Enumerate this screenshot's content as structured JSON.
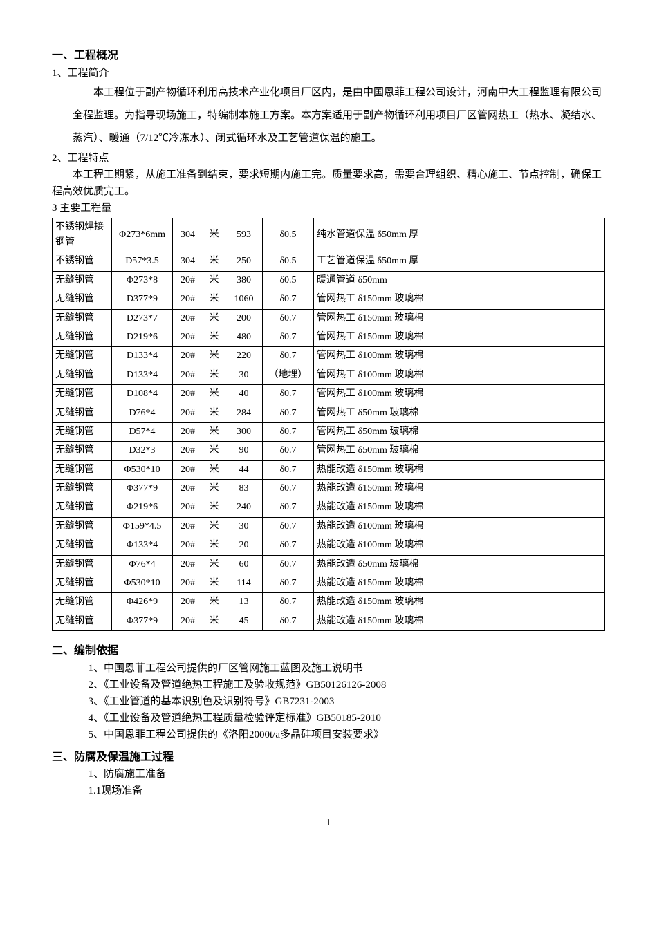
{
  "section1": {
    "heading": "一、工程概况",
    "item1_label": "1、工程简介",
    "item1_para": "本工程位于副产物循环利用高技术产业化项目厂区内，是由中国恩菲工程公司设计，河南中大工程监理有限公司全程监理。为指导现场施工，特编制本施工方案。本方案适用于副产物循环利用项目厂区管网热工（热水、凝结水、蒸汽）、暖通（7/12℃冷冻水）、闭式循环水及工艺管道保温的施工。",
    "item2_label": "2、工程特点",
    "item2_para": "本工程工期紧，从施工准备到结束，要求短期内施工完。质量要求高，需要合理组织、精心施工、节点控制，确保工程高效优质完工。",
    "item3_label": "3 主要工程量"
  },
  "table": {
    "rows": [
      [
        "不锈钢焊接钢管",
        "Φ273*6mm",
        "304",
        "米",
        "593",
        "δ0.5",
        "纯水管道保温 δ50mm 厚"
      ],
      [
        "不锈钢管",
        "D57*3.5",
        "304",
        "米",
        "250",
        "δ0.5",
        "工艺管道保温 δ50mm 厚"
      ],
      [
        "无缝钢管",
        "Φ273*8",
        "20#",
        "米",
        "380",
        "δ0.5",
        "暖通管道 δ50mm"
      ],
      [
        "无缝钢管",
        "D377*9",
        "20#",
        "米",
        "1060",
        "δ0.7",
        "管网热工 δ150mm 玻璃棉"
      ],
      [
        "无缝钢管",
        "D273*7",
        "20#",
        "米",
        "200",
        "δ0.7",
        "管网热工 δ150mm 玻璃棉"
      ],
      [
        "无缝钢管",
        "D219*6",
        "20#",
        "米",
        "480",
        "δ0.7",
        "管网热工 δ150mm 玻璃棉"
      ],
      [
        "无缝钢管",
        "D133*4",
        "20#",
        "米",
        "220",
        "δ0.7",
        "管网热工 δ100mm 玻璃棉"
      ],
      [
        "无缝钢管",
        "D133*4",
        "20#",
        "米",
        "30",
        "（地埋）",
        "管网热工 δ100mm 玻璃棉"
      ],
      [
        "无缝钢管",
        "D108*4",
        "20#",
        "米",
        "40",
        "δ0.7",
        "管网热工 δ100mm 玻璃棉"
      ],
      [
        "无缝钢管",
        "D76*4",
        "20#",
        "米",
        "284",
        "δ0.7",
        "管网热工 δ50mm 玻璃棉"
      ],
      [
        "无缝钢管",
        "D57*4",
        "20#",
        "米",
        "300",
        "δ0.7",
        "管网热工 δ50mm 玻璃棉"
      ],
      [
        "无缝钢管",
        "D32*3",
        "20#",
        "米",
        "90",
        "δ0.7",
        "管网热工 δ50mm 玻璃棉"
      ],
      [
        "无缝钢管",
        "Φ530*10",
        "20#",
        "米",
        "44",
        "δ0.7",
        "热能改造 δ150mm 玻璃棉"
      ],
      [
        "无缝钢管",
        "Φ377*9",
        "20#",
        "米",
        "83",
        "δ0.7",
        "热能改造 δ150mm 玻璃棉"
      ],
      [
        "无缝钢管",
        "Φ219*6",
        "20#",
        "米",
        "240",
        "δ0.7",
        "热能改造 δ150mm 玻璃棉"
      ],
      [
        "无缝钢管",
        "Φ159*4.5",
        "20#",
        "米",
        "30",
        "δ0.7",
        "热能改造 δ100mm 玻璃棉"
      ],
      [
        "无缝钢管",
        "Φ133*4",
        "20#",
        "米",
        "20",
        "δ0.7",
        "热能改造 δ100mm 玻璃棉"
      ],
      [
        "无缝钢管",
        "Φ76*4",
        "20#",
        "米",
        "60",
        "δ0.7",
        "热能改造 δ50mm 玻璃棉"
      ],
      [
        "无缝钢管",
        "Φ530*10",
        "20#",
        "米",
        "114",
        "δ0.7",
        "热能改造 δ150mm 玻璃棉"
      ],
      [
        "无缝钢管",
        "Φ426*9",
        "20#",
        "米",
        "13",
        "δ0.7",
        "热能改造 δ150mm 玻璃棉"
      ],
      [
        "无缝钢管",
        "Φ377*9",
        "20#",
        "米",
        "45",
        "δ0.7",
        "热能改造 δ150mm 玻璃棉"
      ]
    ]
  },
  "section2": {
    "heading": "二、编制依据",
    "items": [
      "1、中国恩菲工程公司提供的厂区管网施工蓝图及施工说明书",
      "2、《工业设备及管道绝热工程施工及验收规范》GB50126126-2008",
      "3、《工业管道的基本识别色及识别符号》GB7231-2003",
      "4、《工业设备及管道绝热工程质量检验评定标准》GB50185-2010",
      "5、中国恩菲工程公司提供的《洛阳2000t/a多晶硅项目安装要求》"
    ]
  },
  "section3": {
    "heading": "三、防腐及保温施工过程",
    "item1": "1、防腐施工准备",
    "item1_1": "1.1现场准备"
  },
  "page_number": "1"
}
